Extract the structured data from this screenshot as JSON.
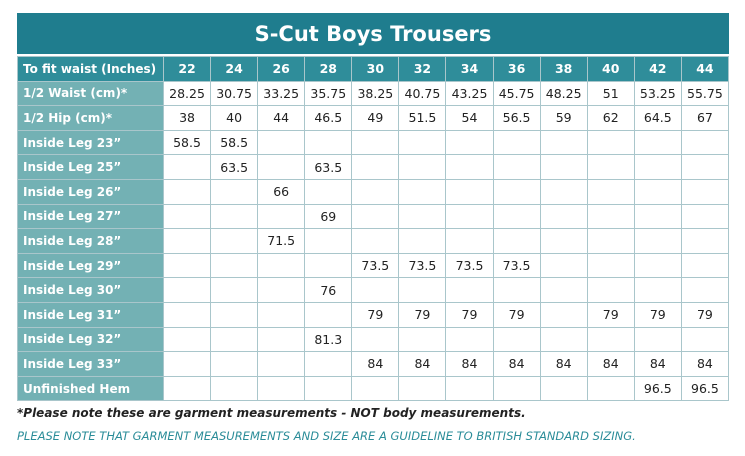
{
  "table": {
    "title": "S-Cut Boys Trousers",
    "header": {
      "label": "To fit waist (Inches)",
      "sizes": [
        22,
        24,
        26,
        28,
        30,
        32,
        34,
        36,
        38,
        40,
        42,
        44
      ]
    },
    "rows": [
      {
        "label": "1/2 Waist (cm)*",
        "cells": [
          28.25,
          30.75,
          33.25,
          35.75,
          38.25,
          40.75,
          43.25,
          45.75,
          48.25,
          51,
          53.25,
          55.75
        ]
      },
      {
        "label": "1/2 Hip (cm)*",
        "cells": [
          38,
          40,
          44,
          46.5,
          49,
          51.5,
          54,
          56.5,
          59,
          62,
          64.5,
          67
        ]
      },
      {
        "label": "Inside Leg 23”",
        "cells": [
          58.5,
          58.5,
          null,
          null,
          null,
          null,
          null,
          null,
          null,
          null,
          null,
          null
        ]
      },
      {
        "label": "Inside Leg 25”",
        "cells": [
          null,
          63.5,
          null,
          63.5,
          null,
          null,
          null,
          null,
          null,
          null,
          null,
          null
        ]
      },
      {
        "label": "Inside Leg 26”",
        "cells": [
          null,
          null,
          66,
          null,
          null,
          null,
          null,
          null,
          null,
          null,
          null,
          null
        ]
      },
      {
        "label": "Inside Leg 27”",
        "cells": [
          null,
          null,
          null,
          69,
          null,
          null,
          null,
          null,
          null,
          null,
          null,
          null
        ]
      },
      {
        "label": "Inside Leg 28”",
        "cells": [
          null,
          null,
          71.5,
          null,
          null,
          null,
          null,
          null,
          null,
          null,
          null,
          null
        ]
      },
      {
        "label": "Inside Leg 29”",
        "cells": [
          null,
          null,
          null,
          null,
          73.5,
          73.5,
          73.5,
          73.5,
          null,
          null,
          null,
          null
        ]
      },
      {
        "label": "Inside Leg 30”",
        "cells": [
          null,
          null,
          null,
          76,
          null,
          null,
          null,
          null,
          null,
          null,
          null,
          null
        ]
      },
      {
        "label": "Inside Leg 31”",
        "cells": [
          null,
          null,
          null,
          null,
          79,
          79,
          79,
          79,
          null,
          79,
          79,
          79
        ]
      },
      {
        "label": "Inside Leg 32”",
        "cells": [
          null,
          null,
          null,
          81.3,
          null,
          null,
          null,
          null,
          null,
          null,
          null,
          null
        ]
      },
      {
        "label": "Inside Leg 33”",
        "cells": [
          null,
          null,
          null,
          null,
          84,
          84,
          84,
          84,
          84,
          84,
          84,
          84
        ]
      },
      {
        "label": "Unfinished Hem",
        "cells": [
          null,
          null,
          null,
          null,
          null,
          null,
          null,
          null,
          null,
          null,
          96.5,
          96.5
        ]
      }
    ]
  },
  "notes": [
    "*Please note these are garment measurements - NOT body measurements.",
    "PLEASE NOTE THAT GARMENT MEASUREMENTS AND SIZE ARE A GUIDELINE TO BRITISH STANDARD SIZING."
  ]
}
